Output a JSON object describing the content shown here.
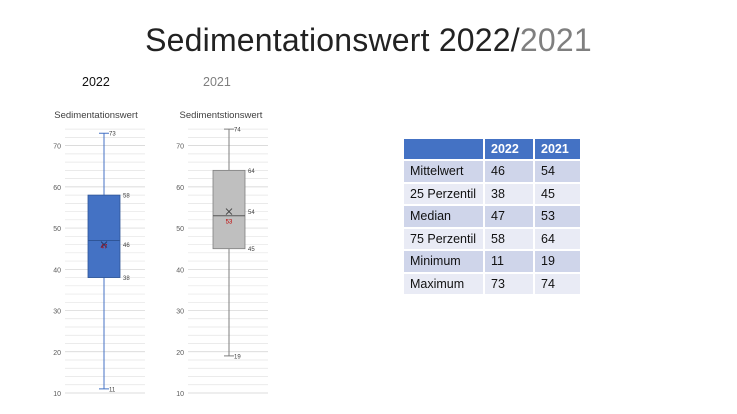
{
  "title": {
    "main": "Sedimentationswert  2022/",
    "year2": "2021"
  },
  "year_labels": [
    "2022",
    "2021"
  ],
  "colors": {
    "box2022": "#4472c4",
    "box2021": "#bfbfbf",
    "mean_marker": "#c00000",
    "header": "#4472c4"
  },
  "chart_data": [
    {
      "type": "boxplot",
      "title": "Sedimentationswert",
      "series": [
        {
          "name": "2022",
          "min": 11,
          "q1": 38,
          "median": 47,
          "q3": 58,
          "max": 73,
          "mean": 46
        }
      ],
      "data_labels": [
        "73",
        "58",
        "46",
        "47",
        "38",
        "11"
      ],
      "ylim": [
        10,
        75
      ],
      "yticks": [
        10,
        20,
        30,
        40,
        50,
        60,
        70
      ],
      "grid": true
    },
    {
      "type": "boxplot",
      "title": "Sedimentstionswert",
      "series": [
        {
          "name": "2021",
          "min": 19,
          "q1": 45,
          "median": 53,
          "q3": 64,
          "max": 74,
          "mean": 54
        }
      ],
      "data_labels": [
        "74",
        "64",
        "54",
        "53",
        "45",
        "19"
      ],
      "ylim": [
        10,
        75
      ],
      "yticks": [
        10,
        20,
        30,
        40,
        50,
        60,
        70
      ],
      "grid": true
    },
    {
      "type": "table",
      "headers": [
        "",
        "2022",
        "2021"
      ],
      "rows": [
        [
          "Mittelwert",
          "46",
          "54"
        ],
        [
          "25 Perzentil",
          "38",
          "45"
        ],
        [
          "Median",
          "47",
          "53"
        ],
        [
          "75 Perzentil",
          "58",
          "64"
        ],
        [
          "Minimum",
          "11",
          "19"
        ],
        [
          "Maximum",
          "73",
          "74"
        ]
      ]
    }
  ]
}
